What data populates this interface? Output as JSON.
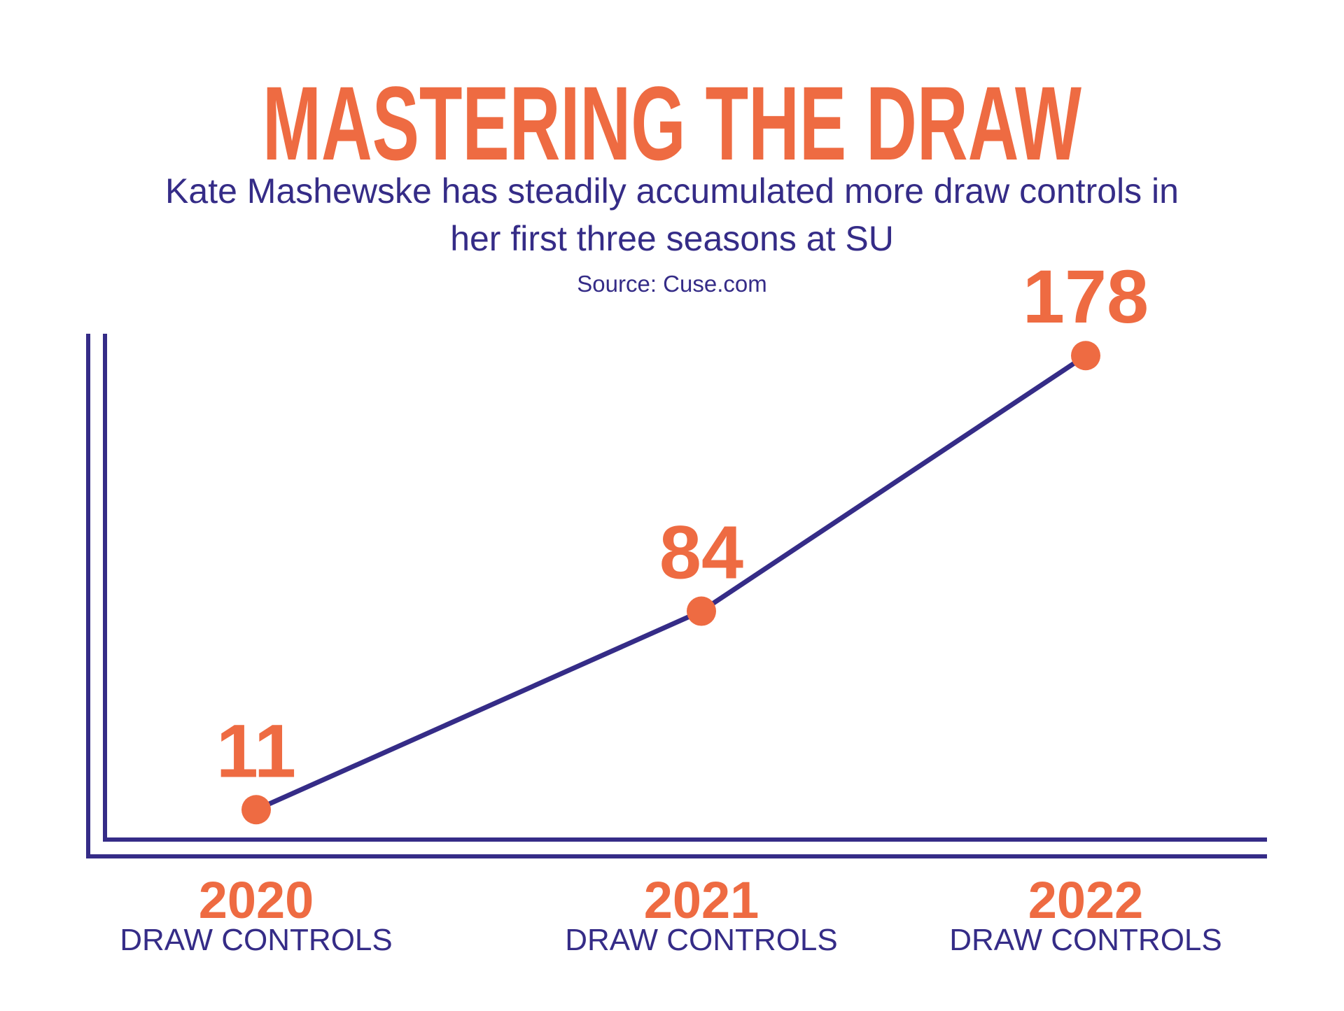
{
  "colors": {
    "accent": "#ee6b42",
    "line": "#352c87",
    "background": "#ffffff"
  },
  "chart_data": {
    "type": "line",
    "title": "MASTERING THE DRAW",
    "subtitle": [
      "Kate Mashewske has steadily accumulated more draw controls in",
      "her first three seasons at SU"
    ],
    "source": "Source:  Cuse.com",
    "categories": [
      "2020",
      "2021",
      "2022"
    ],
    "category_sublabel": "DRAW CONTROLS",
    "values": [
      11,
      84,
      178
    ],
    "ylim": [
      0,
      220
    ],
    "grid": false,
    "legend": "none"
  }
}
